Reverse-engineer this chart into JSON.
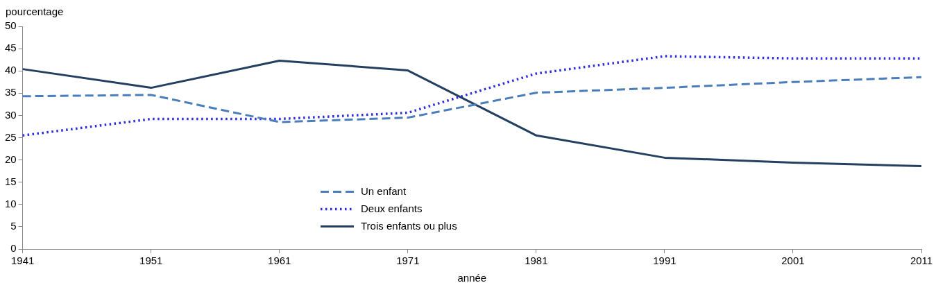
{
  "chart_data": {
    "type": "line",
    "ylabel": "pourcentage",
    "xlabel": "année",
    "categories": [
      "1941",
      "1951",
      "1961",
      "1971",
      "1981",
      "1991",
      "2001",
      "2011"
    ],
    "series": [
      {
        "name": "Un enfant",
        "color": "#4a7ebb",
        "line_style": "dashed",
        "values": [
          34.3,
          34.6,
          28.5,
          29.5,
          35.1,
          36.2,
          37.5,
          38.6
        ]
      },
      {
        "name": "Deux enfants",
        "color": "#2b2be0",
        "line_style": "dotted",
        "values": [
          25.5,
          29.2,
          29.2,
          30.6,
          39.4,
          43.3,
          42.8,
          42.8
        ]
      },
      {
        "name": "Trois enfants ou plus",
        "color": "#243f60",
        "line_style": "solid",
        "values": [
          40.4,
          36.2,
          42.3,
          40.1,
          25.5,
          20.5,
          19.4,
          18.6
        ]
      }
    ],
    "ylim": [
      0,
      50
    ],
    "yticks": [
      0,
      5,
      10,
      15,
      20,
      25,
      30,
      35,
      40,
      45,
      50
    ],
    "grid": false,
    "legend": "bottom",
    "marker": "none"
  }
}
